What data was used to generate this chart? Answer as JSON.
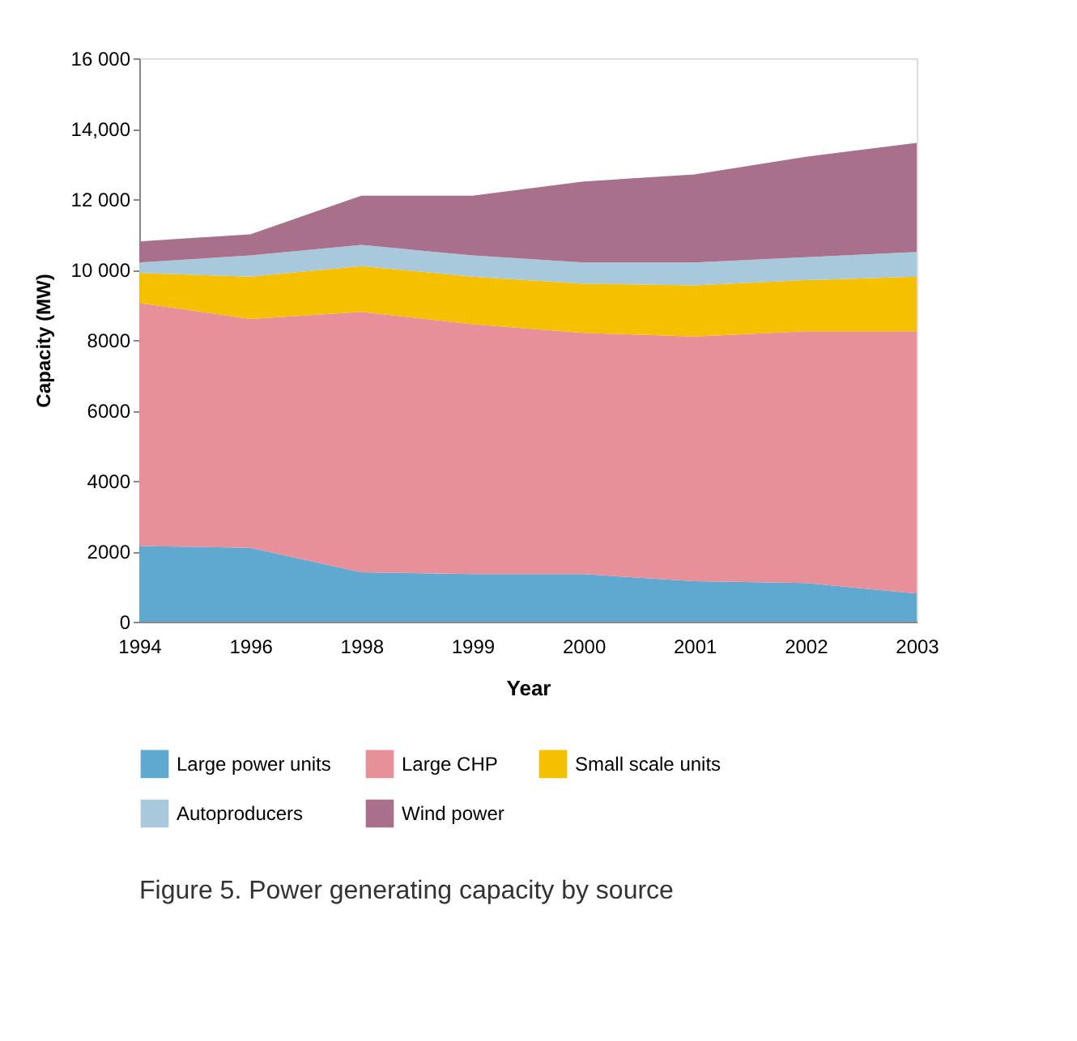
{
  "chart_data": {
    "type": "area",
    "stacked": true,
    "title": "Figure 5. Power generating capacity by source",
    "xlabel": "Year",
    "ylabel": "Capacity (MW)",
    "categories": [
      "1994",
      "1996",
      "1998",
      "1999",
      "2000",
      "2001",
      "2002",
      "2003"
    ],
    "series": [
      {
        "name": "Large power units",
        "color": "#5fa8cf",
        "values": [
          2150,
          2100,
          1400,
          1350,
          1350,
          1150,
          1100,
          800
        ]
      },
      {
        "name": "Large CHP",
        "color": "#e8909a",
        "values": [
          6900,
          6500,
          7400,
          7100,
          6850,
          6950,
          7150,
          7450
        ]
      },
      {
        "name": "Small scale units",
        "color": "#f5c000",
        "values": [
          850,
          1200,
          1300,
          1350,
          1400,
          1450,
          1450,
          1550
        ]
      },
      {
        "name": "Autoproducers",
        "color": "#a8c8dc",
        "values": [
          300,
          600,
          600,
          600,
          600,
          650,
          650,
          700
        ]
      },
      {
        "name": "Wind power",
        "color": "#a8708a",
        "values": [
          600,
          600,
          1400,
          1700,
          2300,
          2500,
          2850,
          3100
        ]
      }
    ],
    "ylim": [
      0,
      16000
    ],
    "yticks": [
      0,
      {
        "value": 2000,
        "label": "2000"
      },
      {
        "value": 4000,
        "label": "4000"
      },
      {
        "value": 6000,
        "label": "6000"
      },
      {
        "value": 8000,
        "label": "8000"
      },
      {
        "value": 10000,
        "label": "10 000"
      },
      {
        "value": 12000,
        "label": "12 000"
      },
      {
        "value": 14000,
        "label": "14,000"
      },
      {
        "value": 16000,
        "label": "16 000"
      }
    ],
    "grid": false,
    "legend": "bottom"
  }
}
